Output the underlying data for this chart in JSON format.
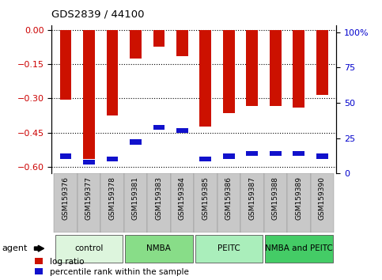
{
  "title": "GDS2839 / 44100",
  "samples": [
    "GSM159376",
    "GSM159377",
    "GSM159378",
    "GSM159381",
    "GSM159383",
    "GSM159384",
    "GSM159385",
    "GSM159386",
    "GSM159387",
    "GSM159388",
    "GSM159389",
    "GSM159390"
  ],
  "log_ratio": [
    -0.305,
    -0.565,
    -0.375,
    -0.125,
    -0.075,
    -0.115,
    -0.425,
    -0.365,
    -0.335,
    -0.335,
    -0.34,
    -0.285
  ],
  "percentile_rank_pct": [
    12,
    8,
    10,
    22,
    32,
    30,
    10,
    12,
    14,
    14,
    14,
    12
  ],
  "bar_color": "#cc1100",
  "pct_color": "#1111cc",
  "groups": [
    {
      "label": "control",
      "indices": [
        0,
        1,
        2
      ],
      "color": "#ddf5dd"
    },
    {
      "label": "NMBA",
      "indices": [
        3,
        4,
        5
      ],
      "color": "#88dd88"
    },
    {
      "label": "PEITC",
      "indices": [
        6,
        7,
        8
      ],
      "color": "#aaeebb"
    },
    {
      "label": "NMBA and PEITC",
      "indices": [
        9,
        10,
        11
      ],
      "color": "#44cc66"
    }
  ],
  "ylim_left": [
    -0.63,
    0.02
  ],
  "ylim_right": [
    0,
    105
  ],
  "yticks_left": [
    0.0,
    -0.15,
    -0.3,
    -0.45,
    -0.6
  ],
  "yticks_right": [
    0,
    25,
    50,
    75,
    100
  ],
  "left_tick_color": "#cc0000",
  "right_tick_color": "#0000cc",
  "bar_width": 0.5,
  "tick_bg_color": "#c8c8c8",
  "agent_label": "agent",
  "legend_log_ratio": "log ratio",
  "legend_pct": "percentile rank within the sample",
  "figsize": [
    4.83,
    3.54
  ],
  "dpi": 100
}
